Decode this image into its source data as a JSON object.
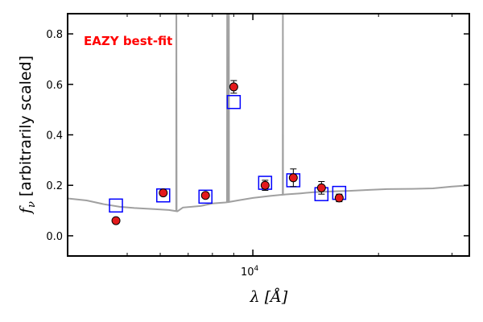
{
  "chart_data": {
    "type": "scatter",
    "annotation": "EAZY best-fit",
    "annotation_color": "#ff0000",
    "xlabel": "λ [Å]",
    "ylabel_math": "f",
    "ylabel_sub": "ν",
    "ylabel_text": " [arbitrarily scaled]",
    "x_scale": "log",
    "xlim": [
      3600,
      33000
    ],
    "ylim": [
      -0.08,
      0.88
    ],
    "x_tick_labels": [
      {
        "value": 10000,
        "label_base": "10",
        "label_exp": "4"
      }
    ],
    "x_minor_ticks": [
      5000,
      6000,
      7000,
      8000,
      9000,
      20000,
      30000
    ],
    "y_ticks": [
      {
        "value": 0.0,
        "label": "0.0"
      },
      {
        "value": 0.2,
        "label": "0.2"
      },
      {
        "value": 0.4,
        "label": "0.4"
      },
      {
        "value": 0.6,
        "label": "0.6"
      },
      {
        "value": 0.8,
        "label": "0.8"
      }
    ],
    "grid": false,
    "colors": {
      "observed": "#e31a1c",
      "model": "#0000ff",
      "template": "#a0a0a0"
    },
    "observed_photometry": [
      {
        "x": 4700,
        "y": 0.06,
        "err": 0.0
      },
      {
        "x": 6100,
        "y": 0.17,
        "err": 0.01
      },
      {
        "x": 7700,
        "y": 0.16,
        "err": 0.01
      },
      {
        "x": 9000,
        "y": 0.59,
        "err": 0.025
      },
      {
        "x": 10700,
        "y": 0.2,
        "err": 0.02
      },
      {
        "x": 12500,
        "y": 0.23,
        "err": 0.035
      },
      {
        "x": 14600,
        "y": 0.19,
        "err": 0.025
      },
      {
        "x": 16100,
        "y": 0.15,
        "err": 0.015
      }
    ],
    "model_photometry": [
      {
        "x": 4700,
        "y": 0.12
      },
      {
        "x": 6100,
        "y": 0.16
      },
      {
        "x": 7700,
        "y": 0.155
      },
      {
        "x": 9000,
        "y": 0.53
      },
      {
        "x": 10700,
        "y": 0.21
      },
      {
        "x": 12500,
        "y": 0.22
      },
      {
        "x": 14600,
        "y": 0.165
      },
      {
        "x": 16100,
        "y": 0.17
      }
    ],
    "template_continuum": [
      [
        3600,
        0.148
      ],
      [
        4000,
        0.14
      ],
      [
        4400,
        0.125
      ],
      [
        4800,
        0.115
      ],
      [
        5200,
        0.11
      ],
      [
        5800,
        0.106
      ],
      [
        6300,
        0.102
      ],
      [
        6600,
        0.097
      ],
      [
        6800,
        0.112
      ],
      [
        7500,
        0.118
      ],
      [
        8000,
        0.128
      ],
      [
        8600,
        0.132
      ],
      [
        9200,
        0.14
      ],
      [
        10000,
        0.15
      ],
      [
        11000,
        0.158
      ],
      [
        12000,
        0.164
      ],
      [
        13000,
        0.168
      ],
      [
        14000,
        0.173
      ],
      [
        15500,
        0.176
      ],
      [
        17000,
        0.178
      ],
      [
        19000,
        0.182
      ],
      [
        21000,
        0.185
      ],
      [
        24000,
        0.186
      ],
      [
        27000,
        0.188
      ],
      [
        30000,
        0.195
      ],
      [
        33000,
        0.2
      ]
    ],
    "template_emission_lines": [
      {
        "x": 6560,
        "peak": 0.88
      },
      {
        "x": 8680,
        "peak": 0.88
      },
      {
        "x": 8760,
        "peak": 0.88
      },
      {
        "x": 11800,
        "peak": 0.88
      }
    ]
  }
}
